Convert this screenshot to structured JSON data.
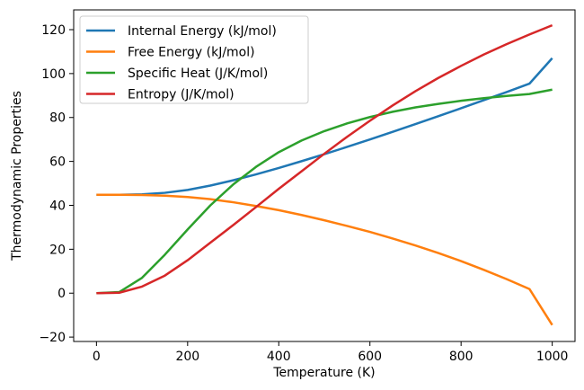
{
  "chart_data": {
    "type": "line",
    "title": "",
    "xlabel": "Temperature (K)",
    "ylabel": "Thermodynamic Properties",
    "xlim": [
      -50,
      1050
    ],
    "ylim": [
      -22,
      129
    ],
    "xticks": [
      0,
      200,
      400,
      600,
      800,
      1000
    ],
    "yticks": [
      -20,
      0,
      20,
      40,
      60,
      80,
      100,
      120
    ],
    "grid": false,
    "legend": "top-left",
    "x": [
      0,
      50,
      100,
      150,
      200,
      250,
      300,
      350,
      400,
      450,
      500,
      550,
      600,
      650,
      700,
      750,
      800,
      850,
      900,
      950,
      1000
    ],
    "series": [
      {
        "name": "Internal Energy (kJ/mol)",
        "color": "#1f77b4",
        "values": [
          44.8,
          44.8,
          45.0,
          45.7,
          47.0,
          49.0,
          51.4,
          54.1,
          57.0,
          60.1,
          63.3,
          66.6,
          70.0,
          73.5,
          77.0,
          80.6,
          84.2,
          87.9,
          91.6,
          95.4,
          107.0
        ]
      },
      {
        "name": "Free Energy (kJ/mol)",
        "color": "#ff7f0e",
        "values": [
          44.8,
          44.8,
          44.7,
          44.4,
          43.8,
          42.8,
          41.4,
          39.7,
          37.8,
          35.6,
          33.2,
          30.6,
          27.9,
          24.9,
          21.7,
          18.3,
          14.6,
          10.6,
          6.4,
          1.9,
          -14.5
        ]
      },
      {
        "name": "Specific Heat (J/K/mol)",
        "color": "#2ca02c",
        "values": [
          0.0,
          0.5,
          7.0,
          17.5,
          29.0,
          40.0,
          49.5,
          57.5,
          64.2,
          69.5,
          73.8,
          77.3,
          80.2,
          82.6,
          84.6,
          86.2,
          87.6,
          88.8,
          89.8,
          90.7,
          92.7
        ]
      },
      {
        "name": "Entropy (J/K/mol)",
        "color": "#d62728",
        "values": [
          0.0,
          0.2,
          3.0,
          8.0,
          15.0,
          23.0,
          31.0,
          39.2,
          47.5,
          55.5,
          63.5,
          71.2,
          78.5,
          85.5,
          92.0,
          98.0,
          103.5,
          108.7,
          113.4,
          117.8,
          122.0
        ]
      }
    ]
  }
}
